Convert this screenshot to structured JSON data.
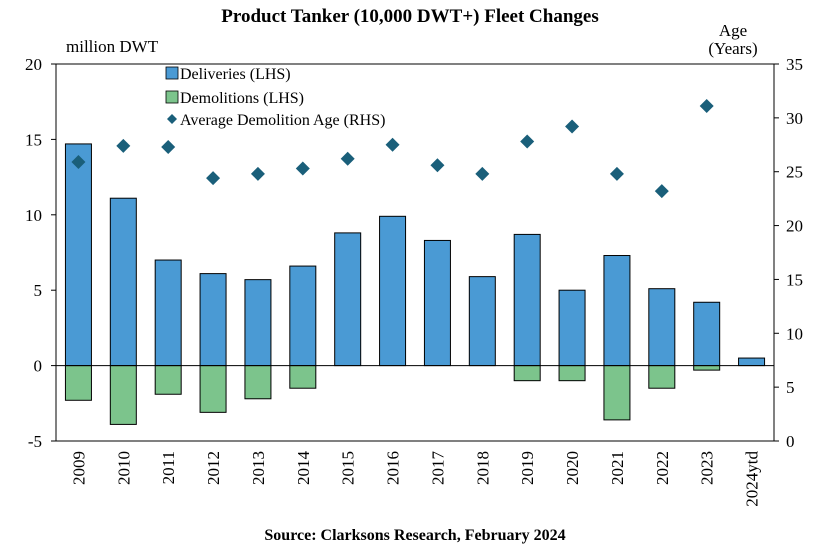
{
  "chart_data": {
    "type": "bar",
    "title": "Product Tanker (10,000 DWT+) Fleet Changes",
    "ylabel_left": "million DWT",
    "ylabel_right_line1": "Age",
    "ylabel_right_line2": "(Years)",
    "source": "Source: Clarksons Research, February 2024",
    "categories": [
      "2009",
      "2010",
      "2011",
      "2012",
      "2013",
      "2014",
      "2015",
      "2016",
      "2017",
      "2018",
      "2019",
      "2020",
      "2021",
      "2022",
      "2023",
      "2024ytd"
    ],
    "series": [
      {
        "name": "Deliveries (LHS)",
        "axis": "left",
        "kind": "bar",
        "color": "#4a9ad4",
        "values": [
          14.7,
          11.1,
          7.0,
          6.1,
          5.7,
          6.6,
          8.8,
          9.9,
          8.3,
          5.9,
          8.7,
          5.0,
          7.3,
          5.1,
          4.2,
          0.5
        ]
      },
      {
        "name": "Demolitions (LHS)",
        "axis": "left",
        "kind": "bar",
        "color": "#7cc48c",
        "values": [
          -2.3,
          -3.9,
          -1.9,
          -3.1,
          -2.2,
          -1.5,
          0,
          0,
          0,
          0,
          -1.0,
          -1.0,
          -3.6,
          -1.5,
          -0.3,
          0
        ]
      },
      {
        "name": "Average Demolition Age (RHS)",
        "axis": "right",
        "kind": "scatter",
        "color": "#1a5f7a",
        "values": [
          25.9,
          27.4,
          27.3,
          24.4,
          24.8,
          25.3,
          26.2,
          27.5,
          25.6,
          24.8,
          27.8,
          29.2,
          24.8,
          23.2,
          31.1,
          null
        ]
      }
    ],
    "ylim_left": [
      -5,
      20
    ],
    "yticks_left": [
      -5,
      0,
      5,
      10,
      15,
      20
    ],
    "ylim_right": [
      0,
      35
    ],
    "yticks_right": [
      0,
      5,
      10,
      15,
      20,
      25,
      30,
      35
    ],
    "grid": false,
    "legend_position": "top-left"
  }
}
